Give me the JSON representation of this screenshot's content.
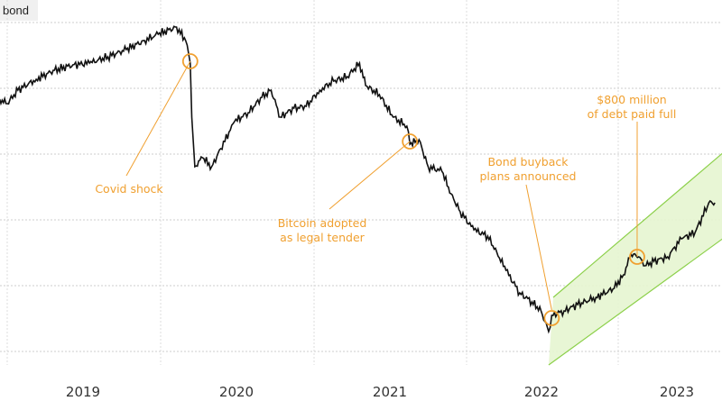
{
  "series_tag": "bond",
  "chart_data": {
    "type": "line",
    "title": "",
    "xlabel": "",
    "ylabel": "",
    "x_ticks": [
      "2019",
      "2020",
      "2021",
      "2022",
      "2023"
    ],
    "xlim": [
      2018.95,
      2023.69
    ],
    "ylim": [
      -55,
      365
    ],
    "grid": true,
    "series": [
      {
        "name": "bond",
        "color": "#111111",
        "x": [
          2018.95,
          2019.0,
          2019.07,
          2019.19,
          2019.31,
          2019.43,
          2019.54,
          2019.66,
          2019.78,
          2019.9,
          2019.99,
          2020.11,
          2020.17,
          2020.2,
          2020.21,
          2020.23,
          2020.28,
          2020.34,
          2020.4,
          2020.49,
          2020.58,
          2020.67,
          2020.73,
          2020.79,
          2020.88,
          2020.96,
          2021.05,
          2021.14,
          2021.23,
          2021.31,
          2021.35,
          2021.44,
          2021.53,
          2021.62,
          2021.64,
          2021.7,
          2021.76,
          2021.85,
          2021.91,
          2021.97,
          2022.06,
          2022.15,
          2022.21,
          2022.27,
          2022.36,
          2022.44,
          2022.5,
          2022.55,
          2022.57,
          2022.65,
          2022.74,
          2022.86,
          2022.98,
          2023.04,
          2023.09,
          2023.14,
          2023.18,
          2023.24,
          2023.33,
          2023.42,
          2023.51,
          2023.6,
          2023.64
        ],
        "y": [
          280,
          275,
          290,
          302,
          312,
          318,
          320,
          327,
          335,
          345,
          352,
          360,
          345,
          320,
          260,
          205,
          215,
          205,
          225,
          255,
          265,
          282,
          290,
          260,
          270,
          272,
          290,
          300,
          305,
          320,
          295,
          285,
          260,
          250,
          230,
          235,
          205,
          200,
          175,
          155,
          135,
          128,
          110,
          90,
          65,
          55,
          45,
          22,
          40,
          45,
          52,
          60,
          70,
          85,
          108,
          105,
          95,
          100,
          105,
          125,
          132,
          165,
          165
        ]
      }
    ],
    "channel": {
      "color": "#8cd04a",
      "fill": "#e6f5d0",
      "lower": [
        [
          2022.55,
          -15
        ],
        [
          2023.69,
          125
        ]
      ],
      "upper": [
        [
          2022.58,
          60
        ],
        [
          2023.69,
          220
        ]
      ]
    },
    "annotations": [
      {
        "lines": [
          "Covid shock"
        ],
        "x": 2020.2,
        "y": 322
      },
      {
        "lines": [
          "Bitcoin adopted",
          "as legal tender"
        ],
        "x": 2021.64,
        "y": 233
      },
      {
        "lines": [
          "Bond buyback",
          "plans announced"
        ],
        "x": 2022.57,
        "y": 37
      },
      {
        "lines": [
          "$800 million",
          "of debt paid full"
        ],
        "x": 2023.13,
        "y": 105
      }
    ],
    "annotation_color": "#f0a030"
  }
}
